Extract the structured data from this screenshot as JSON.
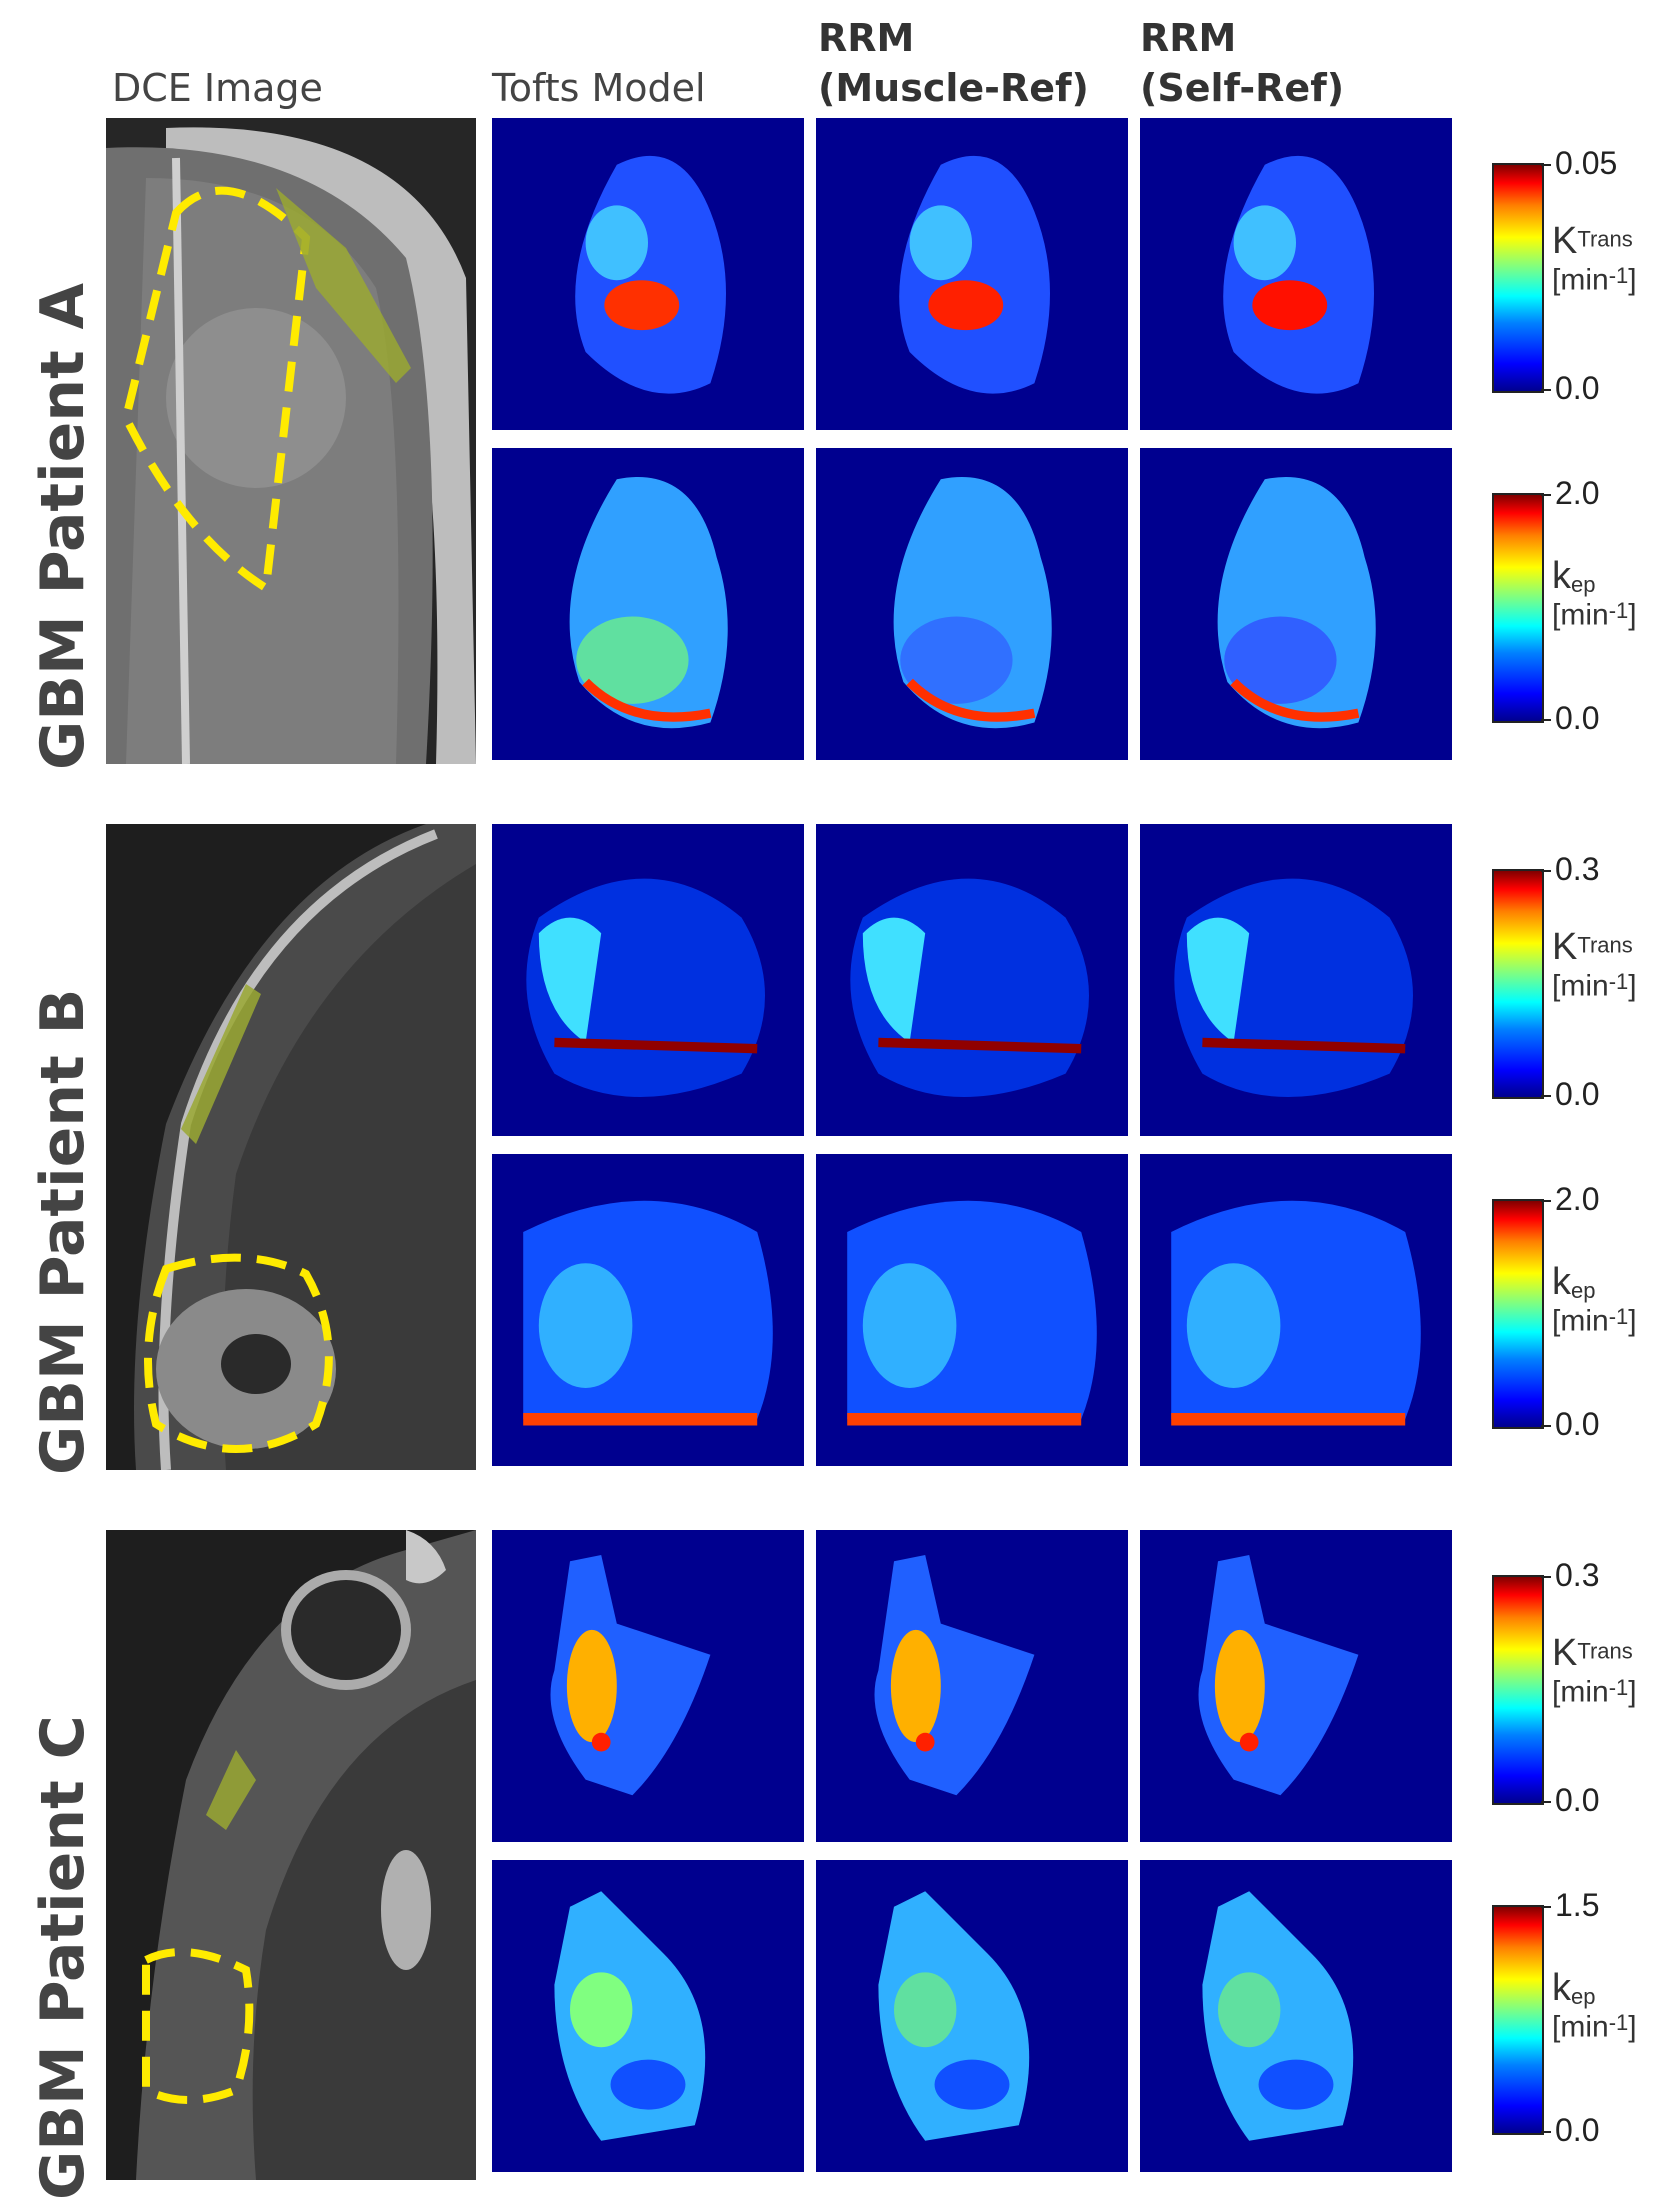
{
  "headers": {
    "dce": "DCE Image",
    "tofts": "Tofts Model",
    "rrm_muscle_line1": "RRM",
    "rrm_muscle_line2": "(Muscle-Ref)",
    "rrm_self_line1": "RRM",
    "rrm_self_line2": "(Self-Ref)"
  },
  "patients": [
    {
      "label": "GBM Patient A",
      "ktrans_scale": {
        "max": "0.05",
        "min": "0.0"
      },
      "kep_scale": {
        "max": "2.0",
        "min": "0.0"
      }
    },
    {
      "label": "GBM Patient B",
      "ktrans_scale": {
        "max": "0.3",
        "min": "0.0"
      },
      "kep_scale": {
        "max": "2.0",
        "min": "0.0"
      }
    },
    {
      "label": "GBM Patient C",
      "ktrans_scale": {
        "max": "0.3",
        "min": "0.0"
      },
      "kep_scale": {
        "max": "1.5",
        "min": "0.0"
      }
    }
  ],
  "units": {
    "ktrans_symbol": "K",
    "ktrans_sup": "Trans",
    "kep_symbol": "k",
    "kep_sub": "ep",
    "unit_text": "[min",
    "unit_sup": "-1",
    "unit_close": "]"
  },
  "colors": {
    "map_background": "#00008f",
    "tumor_outline": "#ffeb00",
    "muscle_roi": "#9aa832"
  }
}
